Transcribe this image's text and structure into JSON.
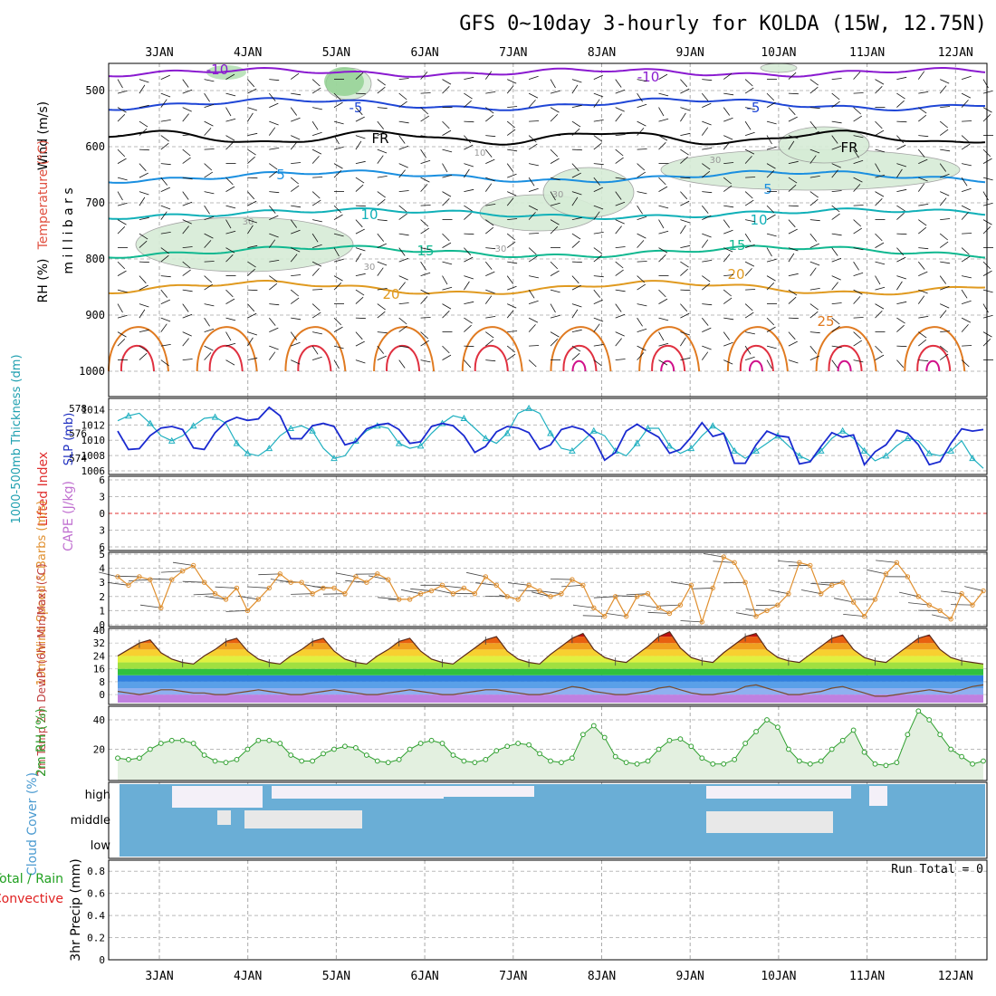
{
  "title": "GFS 0~10day 3-hourly for KOLDA (15W, 12.75N)",
  "colors": {
    "rh_fill": "#d6ecd6",
    "rh_fill_dark": "#8fd08f",
    "fr": "#000000",
    "temp_m10": "#8a1ad0",
    "temp_m5": "#1f46d6",
    "temp_5": "#1a8fe0",
    "temp_10": "#10b0b8",
    "temp_15": "#10b890",
    "temp_20": "#e09a20",
    "temp_25": "#e07a20",
    "temp_30": "#e03040",
    "temp_35": "#d0108a",
    "slp": "#1a2ad0",
    "thick": "#20b0c0",
    "lifted": "#e03030",
    "cape": "#c070d0",
    "wind": "#e09030",
    "rh2m": "#30a030",
    "cloud": "#6aaed6",
    "cloud_clear": "#f4f0f8",
    "cloud_gap": "#e8e8e8",
    "precip_total": "#20a020",
    "precip_conv": "#e02020"
  },
  "xaxis": {
    "ticks": [
      "3JAN",
      "4JAN",
      "5JAN",
      "6JAN",
      "7JAN",
      "8JAN",
      "9JAN",
      "10JAN",
      "11JAN",
      "12JAN"
    ]
  },
  "panels": {
    "upper": {
      "ylabel_wind": "Wind (m/s)",
      "ylabel_temp": "Temperature (°C)",
      "ylabel_rh": "RH (%)",
      "ylabel_units": "m i l l i b a r s",
      "yticks": [
        "500",
        "600",
        "700",
        "800",
        "900",
        "1000"
      ],
      "contour_labels": [
        "-10",
        "-10",
        "-5",
        "-5",
        "FR",
        "FR",
        "5",
        "5",
        "10",
        "10",
        "15",
        "15",
        "20",
        "20",
        "25",
        "30",
        "30",
        "30",
        "30",
        "30",
        "10"
      ]
    },
    "slp": {
      "ylabel_thick": "1000-500mb Thickness (dm)",
      "ylabel_slp": "SLP (mb)",
      "yticks_left": [
        "578",
        "576",
        "574"
      ],
      "yticks_right": [
        "1014",
        "1012",
        "1010",
        "1008",
        "1006"
      ]
    },
    "lifted": {
      "ylabel_li": "Lifted Index",
      "ylabel_cape": "CAPE (J/kg)",
      "yticks": [
        "6",
        "3",
        "0",
        "3",
        "6"
      ]
    },
    "wind10": {
      "ylabel": "10m Wind Speed & Barbs (m/s)",
      "yticks": [
        "5",
        "4",
        "3",
        "2",
        "1",
        "0"
      ]
    },
    "temp2m": {
      "ylabel": "2m Temp 2m DewPt (6hr Min/Max) (°C)",
      "yticks": [
        "40",
        "32",
        "24",
        "16",
        "8",
        "0"
      ]
    },
    "rh2m": {
      "ylabel": "2m RH (%)",
      "yticks": [
        "40",
        "20"
      ]
    },
    "cloud": {
      "ylabel": "Cloud Cover (%)",
      "levels": [
        "high",
        "middle",
        "low"
      ]
    },
    "precip": {
      "ylabel_total": "Total / Rain",
      "ylabel_conv": "Convective",
      "ylabel": "3hr Precip (mm)",
      "yticks": [
        "0.8",
        "0.6",
        "0.4",
        "0.2",
        "0"
      ],
      "run_total": "Run Total = 0"
    }
  },
  "chart_data": [
    {
      "type": "line",
      "name": "SLP",
      "x_hours": [
        0,
        3,
        6,
        9,
        12,
        15,
        18,
        21,
        24,
        27,
        30,
        33,
        36,
        39,
        42,
        45,
        48,
        51,
        54,
        57,
        60,
        63,
        66,
        69,
        72,
        75,
        78,
        81,
        84,
        87,
        90,
        93,
        96,
        99,
        102,
        105,
        108,
        111,
        114,
        117,
        120,
        123,
        126,
        129,
        132,
        135,
        138,
        141,
        144,
        147,
        150,
        153,
        156,
        159,
        162,
        165,
        168,
        171,
        174,
        177,
        180,
        183,
        186,
        189,
        192,
        195,
        198,
        201,
        204,
        207,
        210,
        213,
        216,
        219,
        222,
        225,
        228,
        231,
        234,
        237,
        240
      ],
      "slp_mb": [
        1011.2,
        1008.8,
        1008.9,
        1010.6,
        1011.6,
        1011.8,
        1011.4,
        1009.0,
        1008.8,
        1011.0,
        1012.4,
        1013.0,
        1012.6,
        1012.8,
        1014.3,
        1013.2,
        1010.2,
        1010.2,
        1011.9,
        1012.2,
        1011.8,
        1009.4,
        1009.8,
        1011.5,
        1012.0,
        1012.2,
        1011.4,
        1009.6,
        1009.8,
        1011.8,
        1012.2,
        1011.9,
        1010.6,
        1008.4,
        1009.2,
        1011.1,
        1011.8,
        1011.6,
        1011.0,
        1008.8,
        1009.4,
        1011.4,
        1011.8,
        1011.4,
        1010.2,
        1007.4,
        1008.4,
        1011.2,
        1012.1,
        1011.2,
        1010.4,
        1008.3,
        1008.8,
        1010.4,
        1012.3,
        1010.5,
        1010.9,
        1007.0,
        1007.0,
        1009.4,
        1011.2,
        1010.6,
        1010.4,
        1006.9,
        1007.2,
        1009.2,
        1011.0,
        1010.4,
        1010.7,
        1006.8,
        1008.5,
        1009.4,
        1011.3,
        1010.9,
        1009.4,
        1006.8,
        1007.2,
        1009.6,
        1011.5,
        1011.2,
        1011.4
      ],
      "thickness_dm": [
        577.0,
        577.4,
        577.6,
        576.8,
        575.8,
        575.4,
        575.8,
        576.6,
        577.2,
        577.3,
        576.8,
        575.2,
        574.4,
        574.2,
        574.8,
        575.8,
        576.4,
        576.6,
        576.2,
        574.8,
        574.0,
        574.2,
        575.4,
        576.2,
        576.6,
        576.4,
        575.2,
        574.8,
        575.0,
        576.0,
        576.8,
        577.4,
        577.2,
        576.4,
        575.6,
        575.2,
        576.0,
        577.6,
        578.0,
        577.6,
        576.0,
        574.8,
        574.6,
        575.4,
        576.2,
        575.8,
        574.6,
        574.2,
        575.2,
        576.4,
        576.4,
        575.0,
        574.4,
        574.8,
        575.8,
        576.6,
        576.0,
        574.6,
        574.0,
        574.6,
        575.2,
        575.8,
        575.0,
        574.2,
        573.8,
        574.6,
        575.6,
        576.2,
        575.6,
        574.6,
        573.8,
        574.2,
        575.0,
        575.6,
        575.4,
        574.4,
        574.2,
        574.6,
        575.4,
        574.0,
        573.2
      ],
      "ylim_slp": [
        1006,
        1015
      ],
      "ylim_thick": [
        573,
        578.5
      ]
    },
    {
      "type": "line",
      "name": "10m Wind Speed",
      "x_hours": [
        0,
        3,
        6,
        9,
        12,
        15,
        18,
        21,
        24,
        27,
        30,
        33,
        36,
        39,
        42,
        45,
        48,
        51,
        54,
        57,
        60,
        63,
        66,
        69,
        72,
        75,
        78,
        81,
        84,
        87,
        90,
        93,
        96,
        99,
        102,
        105,
        108,
        111,
        114,
        117,
        120,
        123,
        126,
        129,
        132,
        135,
        138,
        141,
        144,
        147,
        150,
        153,
        156,
        159,
        162,
        165,
        168,
        171,
        174,
        177,
        180,
        183,
        186,
        189,
        192,
        195,
        198,
        201,
        204,
        207,
        210,
        213,
        216,
        219,
        222,
        225,
        228,
        231,
        234,
        237,
        240
      ],
      "values": [
        3.4,
        2.8,
        3.4,
        3.2,
        1.2,
        3.2,
        3.8,
        4.2,
        3.0,
        2.2,
        1.8,
        2.6,
        1.0,
        1.8,
        2.6,
        3.6,
        3.0,
        3.0,
        2.2,
        2.6,
        2.6,
        2.2,
        3.4,
        3.0,
        3.6,
        3.2,
        1.8,
        1.8,
        2.2,
        2.4,
        2.8,
        2.2,
        2.6,
        2.2,
        3.4,
        2.8,
        2.0,
        1.8,
        2.8,
        2.4,
        2.0,
        2.2,
        3.2,
        2.8,
        1.2,
        0.6,
        2.0,
        0.6,
        2.0,
        2.2,
        1.2,
        0.8,
        1.4,
        2.8,
        0.2,
        2.6,
        4.8,
        4.4,
        3.0,
        0.6,
        1.0,
        1.4,
        2.2,
        4.4,
        4.2,
        2.2,
        2.8,
        3.0,
        1.6,
        0.6,
        1.8,
        3.6,
        4.4,
        3.4,
        2.0,
        1.4,
        1.0,
        0.4,
        2.2,
        1.4,
        2.4
      ],
      "ylim": [
        0,
        5
      ]
    },
    {
      "type": "area",
      "name": "2m Temp",
      "x_hours": [
        0,
        3,
        6,
        9,
        12,
        15,
        18,
        21,
        24,
        27,
        30,
        33,
        36,
        39,
        42,
        45,
        48,
        51,
        54,
        57,
        60,
        63,
        66,
        69,
        72,
        75,
        78,
        81,
        84,
        87,
        90,
        93,
        96,
        99,
        102,
        105,
        108,
        111,
        114,
        117,
        120,
        123,
        126,
        129,
        132,
        135,
        138,
        141,
        144,
        147,
        150,
        153,
        156,
        159,
        162,
        165,
        168,
        171,
        174,
        177,
        180,
        183,
        186,
        189,
        192,
        195,
        198,
        201,
        204,
        207,
        210,
        213,
        216,
        219,
        222,
        225,
        228,
        231,
        234,
        237,
        240
      ],
      "temp_c": [
        24,
        28,
        32,
        34,
        26,
        22,
        20,
        19,
        24,
        28,
        33,
        35,
        27,
        22,
        20,
        19,
        24,
        28,
        33,
        35,
        27,
        22,
        20,
        19,
        24,
        28,
        33,
        35,
        27,
        22,
        20,
        19,
        24,
        29,
        34,
        36,
        27,
        22,
        20,
        19,
        25,
        30,
        35,
        38,
        28,
        23,
        21,
        20,
        25,
        30,
        36,
        39,
        29,
        23,
        21,
        20,
        26,
        31,
        36,
        38,
        28,
        23,
        21,
        20,
        25,
        30,
        35,
        37,
        28,
        23,
        21,
        20,
        25,
        30,
        35,
        37,
        28,
        23,
        21,
        20,
        19
      ],
      "dewpt_c": [
        2,
        1,
        0,
        1,
        3,
        3,
        2,
        1,
        1,
        0,
        0,
        1,
        2,
        3,
        2,
        1,
        0,
        0,
        1,
        2,
        3,
        2,
        1,
        0,
        0,
        1,
        2,
        3,
        2,
        1,
        0,
        0,
        1,
        2,
        3,
        3,
        2,
        1,
        0,
        0,
        1,
        3,
        5,
        4,
        2,
        1,
        0,
        0,
        1,
        2,
        4,
        5,
        3,
        1,
        0,
        0,
        1,
        2,
        5,
        6,
        4,
        2,
        0,
        0,
        1,
        2,
        4,
        5,
        3,
        1,
        -1,
        -1,
        0,
        1,
        2,
        3,
        2,
        1,
        3,
        5,
        6
      ],
      "ylim": [
        -5,
        40
      ]
    },
    {
      "type": "area",
      "name": "2m RH",
      "x_hours": [
        0,
        3,
        6,
        9,
        12,
        15,
        18,
        21,
        24,
        27,
        30,
        33,
        36,
        39,
        42,
        45,
        48,
        51,
        54,
        57,
        60,
        63,
        66,
        69,
        72,
        75,
        78,
        81,
        84,
        87,
        90,
        93,
        96,
        99,
        102,
        105,
        108,
        111,
        114,
        117,
        120,
        123,
        126,
        129,
        132,
        135,
        138,
        141,
        144,
        147,
        150,
        153,
        156,
        159,
        162,
        165,
        168,
        171,
        174,
        177,
        180,
        183,
        186,
        189,
        192,
        195,
        198,
        201,
        204,
        207,
        210,
        213,
        216,
        219,
        222,
        225,
        228,
        231,
        234,
        237,
        240
      ],
      "values": [
        14,
        13,
        14,
        20,
        24,
        26,
        26,
        24,
        16,
        12,
        11,
        13,
        20,
        26,
        26,
        24,
        16,
        12,
        12,
        17,
        20,
        22,
        21,
        16,
        12,
        11,
        13,
        20,
        24,
        26,
        24,
        16,
        12,
        11,
        13,
        19,
        22,
        24,
        23,
        17,
        12,
        11,
        14,
        30,
        36,
        28,
        15,
        11,
        10,
        12,
        20,
        26,
        27,
        22,
        14,
        10,
        10,
        13,
        24,
        32,
        40,
        35,
        20,
        12,
        10,
        12,
        20,
        26,
        33,
        18,
        10,
        9,
        11,
        30,
        46,
        40,
        30,
        20,
        15,
        10,
        12
      ],
      "ylim": [
        0,
        48
      ]
    },
    {
      "type": "bar",
      "name": "3hr Precip",
      "values": [],
      "ylim": [
        0,
        0.9
      ]
    }
  ]
}
